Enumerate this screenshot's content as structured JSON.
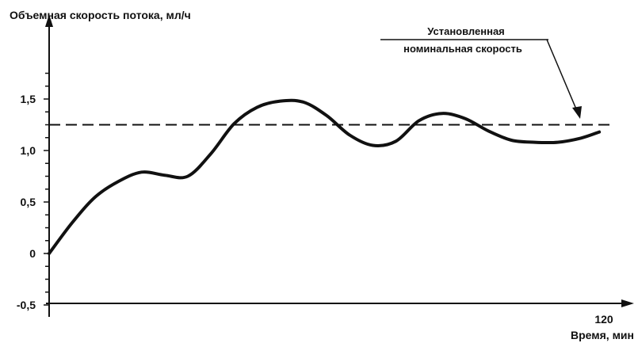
{
  "chart_data": {
    "type": "line",
    "ylabel": "Объемная скорость потока, мл/ч",
    "xlabel": "Время, мин",
    "x_tick_labels": [
      "120"
    ],
    "y_tick_labels": [
      "1,5",
      "1,0",
      "0,5",
      "0",
      "-0,5"
    ],
    "y_ticks": [
      1.5,
      1.0,
      0.5,
      0,
      -0.5
    ],
    "xlim": [
      0,
      120
    ],
    "ylim": [
      -0.5,
      2.0
    ],
    "grid": false,
    "reference_line": {
      "y": 1.25,
      "style": "dashed"
    },
    "annotation": [
      "Установленная",
      "номинальная скорость"
    ],
    "series": [
      {
        "x": [
          0,
          5,
          10,
          15,
          20,
          25,
          30,
          35,
          40,
          45,
          50,
          55,
          60,
          65,
          70,
          75,
          80,
          85,
          90,
          95,
          100,
          105,
          110,
          115,
          119
        ],
        "y": [
          0.0,
          0.3,
          0.55,
          0.7,
          0.79,
          0.76,
          0.75,
          0.97,
          1.26,
          1.42,
          1.48,
          1.47,
          1.34,
          1.15,
          1.05,
          1.09,
          1.29,
          1.36,
          1.31,
          1.19,
          1.1,
          1.08,
          1.08,
          1.12,
          1.18
        ]
      }
    ]
  }
}
